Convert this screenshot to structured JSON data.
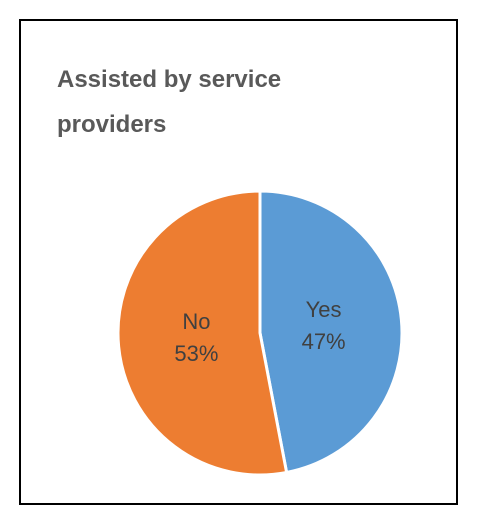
{
  "chart_data": {
    "type": "pie",
    "title": "Assisted by service providers",
    "categories": [
      "Yes",
      "No"
    ],
    "values": [
      47,
      53
    ],
    "value_labels": [
      "47%",
      "53%"
    ],
    "colors": [
      "#5b9bd5",
      "#ed7d31"
    ],
    "start_angle_deg": 0,
    "direction": "clockwise",
    "legend": "none",
    "data_labels": "inside"
  }
}
